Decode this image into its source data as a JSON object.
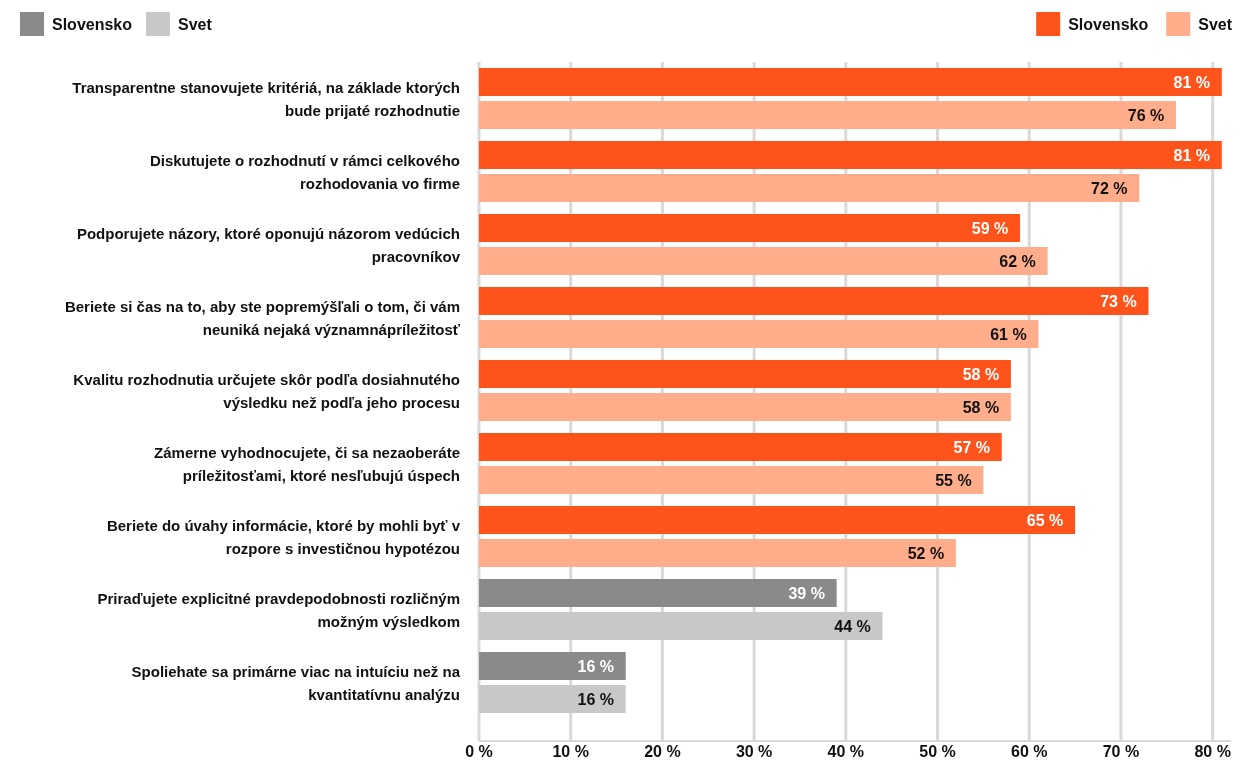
{
  "chart_data": {
    "type": "bar",
    "orientation": "horizontal",
    "categories": [
      "Transparentne stanovujete kritériá, na základe ktorých bude prijaté rozhodnutie",
      "Diskutujete o rozhodnutí v rámci celkového rozhodovania vo firme",
      "Podporujete názory, ktoré oponujú názorom vedúcich pracovníkov",
      "Beriete si čas na to, aby ste popremýšľali o tom, či vám neuniká nejaká významnápríležitosť",
      "Kvalitu rozhodnutia určujete skôr podľa dosiahnutého výsledku než podľa jeho procesu",
      "Zámerne vyhodnocujete, či sa nezaoberáte príležitosťami, ktoré nesľubujú úspech",
      "Beriete do úvahy informácie, ktoré by mohli byť v rozpore s investičnou hypotézou",
      "Priraďujete explicitné pravdepodobnosti rozličným možným výsledkom",
      "Spoliehate sa primárne viac na intuíciu než na kvantitatívnu analýzu"
    ],
    "series": [
      {
        "name": "Slovensko",
        "color": "#8a8a8a",
        "values": [
          null,
          null,
          null,
          null,
          null,
          null,
          null,
          39,
          16
        ],
        "value_labels": [
          null,
          null,
          null,
          null,
          null,
          null,
          null,
          "39 %",
          "16 %"
        ]
      },
      {
        "name": "Svet",
        "color": "#c8c8c8",
        "values": [
          null,
          null,
          null,
          null,
          null,
          null,
          null,
          44,
          16
        ],
        "value_labels": [
          null,
          null,
          null,
          null,
          null,
          null,
          null,
          "44 %",
          "16 %"
        ]
      },
      {
        "name": "Slovensko",
        "color": "#ff531c",
        "values": [
          81,
          81,
          59,
          73,
          58,
          57,
          65,
          null,
          null
        ],
        "value_labels": [
          "81 %",
          "81 %",
          "59 %",
          "73 %",
          "58 %",
          "57 %",
          "65 %",
          null,
          null
        ]
      },
      {
        "name": "Svet",
        "color": "#ffad8a",
        "values": [
          76,
          72,
          62,
          61,
          58,
          55,
          52,
          null,
          null
        ],
        "value_labels": [
          "76 %",
          "72 %",
          "62 %",
          "61 %",
          "58 %",
          "55 %",
          "52 %",
          null,
          null
        ]
      }
    ],
    "xlim": [
      0,
      82
    ],
    "xticks": [
      {
        "value": 0,
        "label": "0 %"
      },
      {
        "value": 10,
        "label": "10 %"
      },
      {
        "value": 20,
        "label": "20 %"
      },
      {
        "value": 30,
        "label": "30 %"
      },
      {
        "value": 40,
        "label": "40 %"
      },
      {
        "value": 50,
        "label": "50 %"
      },
      {
        "value": 60,
        "label": "60 %"
      },
      {
        "value": 70,
        "label": "70 %"
      },
      {
        "value": 80,
        "label": "80 %"
      }
    ],
    "grid": "x",
    "legend": "top"
  }
}
